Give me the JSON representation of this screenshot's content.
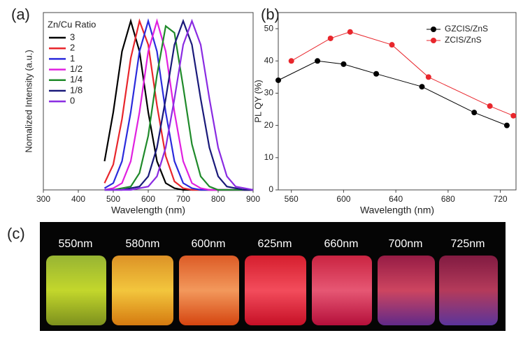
{
  "chart_data": [
    {
      "type": "line",
      "panel": "(a)",
      "x_label": "Wavelength (nm)",
      "y_label": "Nomalized Intensity (a.u.)",
      "legend_title": "Zn/Cu Ratio",
      "x": [
        475,
        500,
        525,
        550,
        575,
        600,
        625,
        650,
        675,
        700,
        725,
        750,
        775,
        800,
        825,
        850,
        875,
        900
      ],
      "xlim": [
        300,
        900
      ],
      "xticks": [
        300,
        400,
        500,
        600,
        700,
        800,
        900
      ],
      "ylim": [
        0,
        1.05
      ],
      "legend": "top-left",
      "series": [
        {
          "name": "3",
          "color": "#000000",
          "values": [
            0.17,
            0.46,
            0.82,
            1,
            0.82,
            0.46,
            0.17,
            0.04,
            0.01,
            0,
            0,
            0,
            0,
            0,
            0,
            0,
            0,
            0
          ]
        },
        {
          "name": "2",
          "color": "#e8262c",
          "values": [
            0.04,
            0.15,
            0.42,
            0.78,
            1,
            0.86,
            0.5,
            0.2,
            0.05,
            0.01,
            0,
            0,
            0,
            0,
            0,
            0,
            0,
            0
          ]
        },
        {
          "name": "1",
          "color": "#2b2bdc",
          "values": [
            0.01,
            0.04,
            0.17,
            0.46,
            0.82,
            1,
            0.82,
            0.46,
            0.17,
            0.04,
            0.01,
            0,
            0,
            0,
            0,
            0,
            0,
            0
          ]
        },
        {
          "name": "1/2",
          "color": "#e020e0",
          "values": [
            0,
            0.01,
            0.04,
            0.17,
            0.46,
            0.82,
            1,
            0.82,
            0.46,
            0.17,
            0.04,
            0.01,
            0,
            0,
            0,
            0,
            0,
            0
          ]
        },
        {
          "name": "1/4",
          "color": "#1f8a2a",
          "values": [
            0,
            0,
            0.01,
            0.02,
            0.1,
            0.32,
            0.68,
            0.97,
            0.93,
            0.61,
            0.27,
            0.08,
            0.02,
            0,
            0,
            0,
            0,
            0
          ]
        },
        {
          "name": "1/8",
          "color": "#1a1a7a",
          "values": [
            0,
            0,
            0,
            0.01,
            0.02,
            0.08,
            0.25,
            0.54,
            0.86,
            1,
            0.86,
            0.54,
            0.25,
            0.08,
            0.02,
            0.01,
            0,
            0
          ]
        },
        {
          "name": "0",
          "color": "#8a2be2",
          "values": [
            0,
            0,
            0,
            0,
            0.01,
            0.02,
            0.08,
            0.25,
            0.54,
            0.86,
            1,
            0.86,
            0.54,
            0.25,
            0.08,
            0.02,
            0.01,
            0
          ]
        }
      ]
    },
    {
      "type": "scatter-line",
      "panel": "(b)",
      "x_label": "Wavelength (nm)",
      "y_label": "PL QY (%)",
      "xlim": [
        550,
        732
      ],
      "xticks": [
        560,
        600,
        640,
        680,
        720
      ],
      "ylim": [
        0,
        55
      ],
      "yticks": [
        0,
        10,
        20,
        30,
        40,
        50
      ],
      "legend": "top-right",
      "series": [
        {
          "name": "GZCIS/ZnS",
          "color": "#000000",
          "x": [
            550,
            580,
            600,
            625,
            660,
            700,
            725
          ],
          "values": [
            34,
            40,
            39,
            36,
            32,
            24,
            20
          ]
        },
        {
          "name": "ZCIS/ZnS",
          "color": "#e8262c",
          "x": [
            560,
            590,
            605,
            637,
            665,
            712,
            730
          ],
          "values": [
            40,
            47,
            49,
            45,
            35,
            26,
            23
          ]
        }
      ]
    }
  ],
  "photo": {
    "panel": "(c)",
    "labels": [
      "550nm",
      "580nm",
      "600nm",
      "625nm",
      "660nm",
      "700nm",
      "725nm"
    ]
  }
}
